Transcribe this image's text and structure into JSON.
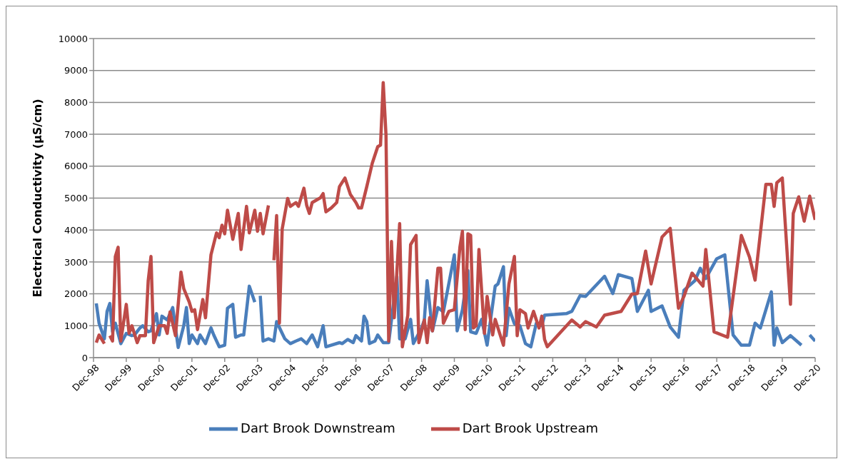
{
  "chart_data": {
    "type": "line",
    "ylabel": "Electrical Conductivity (µS/cm)",
    "xlim": [
      "1998-12",
      "2020-12"
    ],
    "xticks": [
      {
        "value": "1998-12",
        "label": "Dec-98"
      },
      {
        "value": "1999-12",
        "label": "Dec-99"
      },
      {
        "value": "2000-12",
        "label": "Dec-00"
      },
      {
        "value": "2001-12",
        "label": "Dec-01"
      },
      {
        "value": "2002-12",
        "label": "Dec-02"
      },
      {
        "value": "2003-12",
        "label": "Dec-03"
      },
      {
        "value": "2004-12",
        "label": "Dec-04"
      },
      {
        "value": "2005-12",
        "label": "Dec-05"
      },
      {
        "value": "2006-12",
        "label": "Dec-06"
      },
      {
        "value": "2007-12",
        "label": "Dec-07"
      },
      {
        "value": "2008-12",
        "label": "Dec-08"
      },
      {
        "value": "2009-12",
        "label": "Dec-09"
      },
      {
        "value": "2010-12",
        "label": "Dec-10"
      },
      {
        "value": "2011-12",
        "label": "Dec-11"
      },
      {
        "value": "2012-12",
        "label": "Dec-12"
      },
      {
        "value": "2013-12",
        "label": "Dec-13"
      },
      {
        "value": "2014-12",
        "label": "Dec-14"
      },
      {
        "value": "2015-12",
        "label": "Dec-15"
      },
      {
        "value": "2016-12",
        "label": "Dec-16"
      },
      {
        "value": "2017-12",
        "label": "Dec-17"
      },
      {
        "value": "2018-12",
        "label": "Dec-18"
      },
      {
        "value": "2019-12",
        "label": "Dec-19"
      },
      {
        "value": "2020-12",
        "label": "Dec-20"
      }
    ],
    "ylim": [
      0,
      10000
    ],
    "yticks": [
      0,
      1000,
      2000,
      3000,
      4000,
      5000,
      6000,
      7000,
      8000,
      9000,
      10000
    ],
    "grid": "y",
    "legend": "bottom",
    "marker": "none",
    "line_style": "solid",
    "series": [
      {
        "name": "Dart Brook Downstream",
        "color": "#4a7ebb",
        "x": [
          "1999-01",
          "1999-02",
          "1999-04",
          "1999-05",
          "1999-06",
          "1999-07",
          "1999-08",
          "1999-10",
          "1999-12",
          "2000-02",
          "2000-03",
          "2000-05",
          "2000-06",
          "2000-08",
          "2000-09",
          "2000-11",
          "2000-12",
          "2001-01",
          "2001-03",
          "2001-05",
          "2001-07",
          "2001-09",
          "2001-10",
          "2001-11",
          "2001-12",
          "2002-02",
          "2002-03",
          "2002-05",
          "2002-07",
          "2002-08",
          "2002-10",
          "2002-12",
          "2003-01",
          "2003-03",
          "2003-04",
          "2003-06",
          "2003-07",
          "2003-09",
          "2003-11",
          "2003-12",
          "2004-01",
          "2004-02",
          "2004-04",
          "2004-06",
          "2004-07",
          "2004-09",
          "2004-10",
          "2004-12",
          "2005-02",
          "2005-04",
          "2005-06",
          "2005-08",
          "2005-10",
          "2005-12",
          "2006-01",
          "2006-06",
          "2006-07",
          "2006-09",
          "2006-11",
          "2006-12",
          "2007-02",
          "2007-03",
          "2007-04",
          "2007-05",
          "2007-07",
          "2007-08",
          "2007-10",
          "2007-12",
          "2008-03",
          "2008-04",
          "2008-06",
          "2008-08",
          "2008-09",
          "2008-12",
          "2009-01",
          "2009-02",
          "2009-04",
          "2009-06",
          "2009-08",
          "2009-12",
          "2010-01",
          "2010-03",
          "2010-05",
          "2010-06",
          "2010-08",
          "2010-10",
          "2010-12",
          "2011-03",
          "2011-04",
          "2011-06",
          "2011-07",
          "2011-08",
          "2011-10",
          "2011-12",
          "2012-02",
          "2012-04",
          "2012-06",
          "2012-08",
          "2012-09",
          "2013-05",
          "2013-07",
          "2013-10",
          "2013-12",
          "2014-07",
          "2014-10",
          "2014-12",
          "2015-05",
          "2015-07",
          "2015-11",
          "2015-12",
          "2016-04",
          "2016-07",
          "2016-10",
          "2016-12",
          "2017-04",
          "2017-06",
          "2017-08",
          "2017-12",
          "2018-03",
          "2018-06",
          "2018-09",
          "2018-12",
          "2019-02",
          "2019-04",
          "2019-08",
          "2019-09",
          "2019-10",
          "2019-12",
          "2020-03",
          "2020-07",
          "2020-08",
          "2020-10",
          "2020-12"
        ],
        "values": [
          1700,
          1080,
          590,
          1450,
          1700,
          810,
          1080,
          440,
          760,
          690,
          710,
          930,
          1000,
          810,
          840,
          1380,
          710,
          1300,
          1180,
          1570,
          320,
          1000,
          1570,
          440,
          710,
          440,
          710,
          440,
          930,
          710,
          340,
          390,
          1550,
          1670,
          640,
          710,
          710,
          2240,
          1740,
          null,
          1940,
          520,
          590,
          520,
          1130,
          760,
          590,
          440,
          520,
          590,
          440,
          710,
          340,
          1000,
          340,
          470,
          440,
          570,
          470,
          690,
          520,
          1300,
          1130,
          440,
          520,
          710,
          470,
          470,
          2550,
          590,
          590,
          1200,
          440,
          930,
          1180,
          2410,
          840,
          1570,
          1430,
          3220,
          840,
          1500,
          2730,
          810,
          760,
          1200,
          390,
          2240,
          2310,
          2850,
          690,
          1550,
          1060,
          1000,
          440,
          340,
          1080,
          1000,
          1330,
          1380,
          1450,
          1940,
          1920,
          2550,
          2010,
          2600,
          2480,
          1450,
          2110,
          1450,
          1620,
          960,
          640,
          2110,
          2410,
          2800,
          2480,
          3100,
          3220,
          710,
          390,
          390,
          1080,
          930,
          2060,
          390,
          930,
          470,
          690,
          390,
          null,
          710,
          520
        ]
      },
      {
        "name": "Dart Brook Upstream",
        "color": "#be4b48",
        "x": [
          "1999-01",
          "1999-02",
          "1999-04",
          "1999-05",
          "1999-06",
          "1999-07",
          "1999-08",
          "1999-09",
          "1999-10",
          "1999-12",
          "2000-01",
          "2000-02",
          "2000-04",
          "2000-05",
          "2000-07",
          "2000-08",
          "2000-09",
          "2000-10",
          "2000-12",
          "2001-02",
          "2001-03",
          "2001-04",
          "2001-06",
          "2001-08",
          "2001-09",
          "2001-11",
          "2001-12",
          "2002-01",
          "2002-02",
          "2002-04",
          "2002-05",
          "2002-07",
          "2002-09",
          "2002-10",
          "2002-11",
          "2002-12",
          "2003-01",
          "2003-03",
          "2003-05",
          "2003-06",
          "2003-08",
          "2003-09",
          "2003-11",
          "2003-12",
          "2004-01",
          "2004-02",
          "2004-04",
          "2004-05",
          "2004-06",
          "2004-07",
          "2004-08",
          "2004-09",
          "2004-11",
          "2004-12",
          "2005-02",
          "2005-03",
          "2005-05",
          "2005-06",
          "2005-07",
          "2005-08",
          "2005-11",
          "2005-12",
          "2006-01",
          "2006-03",
          "2006-05",
          "2006-06",
          "2006-08",
          "2006-10",
          "2006-12",
          "2007-01",
          "2007-02",
          "2007-04",
          "2007-06",
          "2007-08",
          "2007-09",
          "2007-10",
          "2007-11",
          "2007-12",
          "2008-01",
          "2008-02",
          "2008-04",
          "2008-05",
          "2008-07",
          "2008-08",
          "2008-10",
          "2008-11",
          "2009-01",
          "2009-02",
          "2009-03",
          "2009-04",
          "2009-06",
          "2009-07",
          "2009-08",
          "2009-10",
          "2009-12",
          "2010-02",
          "2010-03",
          "2010-04",
          "2010-05",
          "2010-06",
          "2010-07",
          "2010-08",
          "2010-09",
          "2010-11",
          "2010-12",
          "2011-02",
          "2011-03",
          "2011-06",
          "2011-08",
          "2011-10",
          "2011-11",
          "2011-12",
          "2012-02",
          "2012-03",
          "2012-05",
          "2012-07",
          "2012-08",
          "2012-09",
          "2012-10",
          "2013-07",
          "2013-10",
          "2013-12",
          "2014-04",
          "2014-07",
          "2015-01",
          "2015-05",
          "2015-07",
          "2015-10",
          "2015-12",
          "2016-04",
          "2016-07",
          "2016-10",
          "2016-12",
          "2017-03",
          "2017-07",
          "2017-08",
          "2017-11",
          "2018-04",
          "2018-09",
          "2018-12",
          "2019-02",
          "2019-06",
          "2019-08",
          "2019-09",
          "2019-10",
          "2019-12",
          "2020-03",
          "2020-04",
          "2020-06",
          "2020-08",
          "2020-10",
          "2020-12"
        ],
        "values": [
          470,
          710,
          440,
          null,
          690,
          520,
          3170,
          3460,
          520,
          1670,
          760,
          1000,
          470,
          690,
          690,
          2410,
          3170,
          470,
          1000,
          1000,
          760,
          1430,
          690,
          2680,
          2160,
          1740,
          1450,
          1500,
          880,
          1820,
          1250,
          3220,
          3910,
          3760,
          4150,
          3880,
          4620,
          3710,
          4520,
          3390,
          4740,
          3910,
          4620,
          3960,
          4520,
          3880,
          4770,
          null,
          3050,
          4450,
          1080,
          4030,
          4990,
          4740,
          4860,
          4740,
          5310,
          4770,
          4520,
          4860,
          5010,
          5140,
          4570,
          4690,
          4860,
          5360,
          5630,
          5110,
          4860,
          4690,
          4690,
          5360,
          6090,
          6610,
          6660,
          8620,
          6980,
          520,
          3640,
          1250,
          4200,
          340,
          1330,
          3540,
          3830,
          470,
          1180,
          470,
          1250,
          840,
          2800,
          2800,
          1080,
          1450,
          1500,
          3460,
          3960,
          880,
          3880,
          3830,
          930,
          1000,
          3390,
          760,
          1920,
          710,
          1200,
          390,
          2310,
          3170,
          690,
          1500,
          1380,
          930,
          1450,
          930,
          1300,
          570,
          340,
          1180,
          960,
          1130,
          960,
          1330,
          1450,
          1990,
          2010,
          3340,
          2310,
          3780,
          4050,
          1550,
          1920,
          2650,
          2240,
          3390,
          810,
          640,
          3830,
          3150,
          2430,
          5430,
          5430,
          4740,
          5480,
          5630,
          1670,
          4520,
          5040,
          4280,
          5060,
          4320
        ]
      }
    ]
  }
}
